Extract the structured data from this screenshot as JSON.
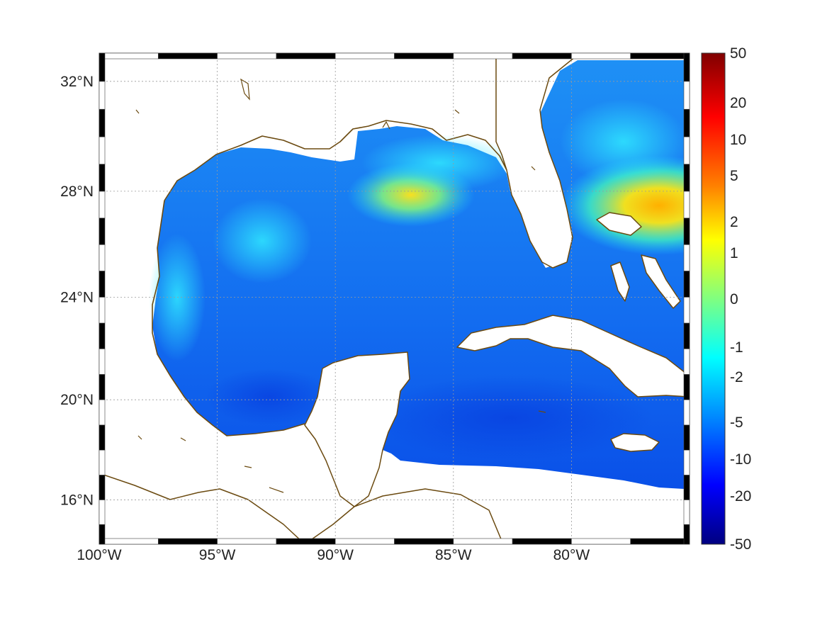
{
  "map": {
    "lon_ticks": [
      "100°W",
      "95°W",
      "90°W",
      "85°W",
      "80°W"
    ],
    "lat_ticks": [
      "32°N",
      "28°N",
      "24°N",
      "20°N",
      "16°N"
    ],
    "lon_tick_values": [
      -100,
      -95,
      -90,
      -85,
      -80
    ],
    "lat_tick_values": [
      32,
      28,
      24,
      20,
      16
    ],
    "lon_range": [
      -100,
      -75
    ],
    "lat_range": [
      14.2,
      33
    ],
    "grid": true,
    "coastline_color": "#6b4a10",
    "land_color": "#ffffff"
  },
  "colorbar": {
    "tick_labels": [
      "50",
      "20",
      "10",
      "5",
      "2",
      "1",
      "0",
      "-1",
      "-2",
      "-5",
      "-10",
      "-20",
      "-50"
    ],
    "colors_top_to_bottom": [
      "#800000",
      "#ff0000",
      "#ff8000",
      "#ffff00",
      "#80ff80",
      "#00ffff",
      "#0080ff",
      "#0000ff",
      "#000080"
    ]
  },
  "chart_data": {
    "type": "heatmap",
    "title": "",
    "xlabel": "",
    "ylabel": "",
    "x_ticks": [
      "100°W",
      "95°W",
      "90°W",
      "85°W",
      "80°W"
    ],
    "y_ticks": [
      "32°N",
      "28°N",
      "24°N",
      "20°N",
      "16°N"
    ],
    "xlim": [
      -100,
      -75
    ],
    "ylim": [
      14.2,
      33
    ],
    "color_scale": "symmetric nonlinear, -50 to 50",
    "colorbar_ticks": [
      50,
      20,
      10,
      5,
      2,
      1,
      0,
      -1,
      -2,
      -5,
      -10,
      -20,
      -50
    ],
    "features": [
      {
        "region": "central Gulf of Mexico",
        "approx_lon": -87,
        "approx_lat": 27.5,
        "value": 1
      },
      {
        "region": "Gulf Stream east of Florida",
        "approx_lon": -76,
        "approx_lat": 27.5,
        "value": 4
      },
      {
        "region": "western Gulf of Mexico",
        "approx_lon": -94,
        "approx_lat": 25,
        "value": -4
      },
      {
        "region": "Caribbean Sea",
        "approx_lon": -80,
        "approx_lat": 18,
        "value": -8
      }
    ]
  }
}
